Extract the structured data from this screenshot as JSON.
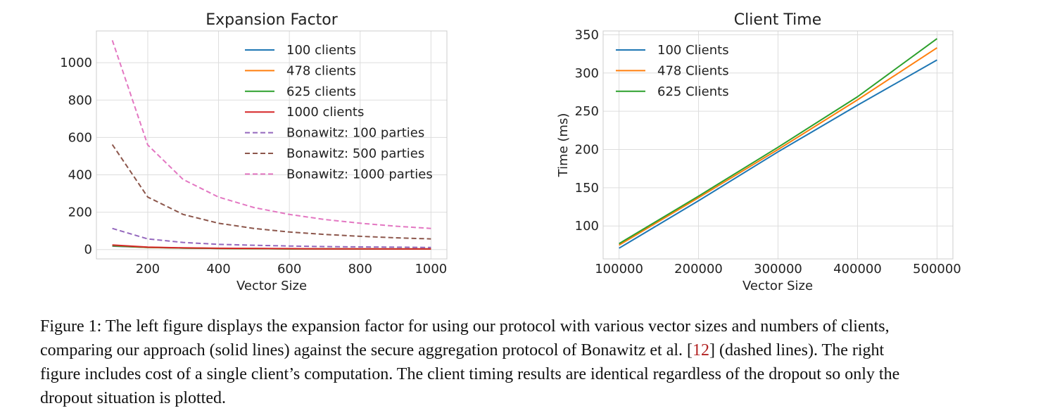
{
  "chart_data": [
    {
      "type": "line",
      "title": "Expansion Factor",
      "xlabel": "Vector Size",
      "ylabel": "",
      "xlim": [
        55,
        1045
      ],
      "ylim": [
        -50,
        1170
      ],
      "xticks": [
        200,
        400,
        600,
        800,
        1000
      ],
      "yticks": [
        0,
        200,
        400,
        600,
        800,
        1000
      ],
      "grid": true,
      "legend_position": "top-right",
      "x": [
        100,
        200,
        300,
        400,
        500,
        600,
        700,
        800,
        900,
        1000
      ],
      "series": [
        {
          "name": "100 clients",
          "color": "#1f77b4",
          "style": "solid",
          "values": [
            18,
            11,
            8,
            6,
            5,
            4,
            4,
            3,
            3,
            3
          ]
        },
        {
          "name": "478 clients",
          "color": "#ff7f0e",
          "style": "solid",
          "values": [
            20,
            11,
            8,
            6,
            5,
            4,
            4,
            3,
            3,
            3
          ]
        },
        {
          "name": "625 clients",
          "color": "#2ca02c",
          "style": "solid",
          "values": [
            21,
            12,
            8,
            6,
            5,
            4,
            4,
            3,
            3,
            3
          ]
        },
        {
          "name": "1000 clients",
          "color": "#d62728",
          "style": "solid",
          "values": [
            24,
            13,
            9,
            7,
            6,
            5,
            4,
            4,
            3,
            3
          ]
        },
        {
          "name": "Bonawitz: 100 parties",
          "color": "#9467bd",
          "style": "dashed",
          "values": [
            113,
            57,
            38,
            28,
            23,
            19,
            16,
            14,
            13,
            11
          ]
        },
        {
          "name": "Bonawitz: 500 parties",
          "color": "#8c564b",
          "style": "dashed",
          "values": [
            562,
            281,
            188,
            141,
            113,
            94,
            81,
            71,
            63,
            57
          ]
        },
        {
          "name": "Bonawitz: 1000 parties",
          "color": "#e377c2",
          "style": "dashed",
          "values": [
            1120,
            560,
            375,
            281,
            225,
            188,
            161,
            141,
            125,
            113
          ]
        }
      ]
    },
    {
      "type": "line",
      "title": "Client Time",
      "xlabel": "Vector Size",
      "ylabel": "Time (ms)",
      "xlim": [
        80000,
        520000
      ],
      "ylim": [
        57,
        355
      ],
      "xticks": [
        100000,
        200000,
        300000,
        400000,
        500000
      ],
      "yticks": [
        100,
        150,
        200,
        250,
        300,
        350
      ],
      "grid": true,
      "legend_position": "top-left",
      "x": [
        100000,
        200000,
        300000,
        400000,
        500000
      ],
      "series": [
        {
          "name": "100 Clients",
          "color": "#1f77b4",
          "style": "solid",
          "values": [
            71,
            133,
            197,
            258,
            317
          ]
        },
        {
          "name": "478 Clients",
          "color": "#ff7f0e",
          "style": "solid",
          "values": [
            75,
            137,
            200,
            265,
            333
          ]
        },
        {
          "name": "625 Clients",
          "color": "#2ca02c",
          "style": "solid",
          "values": [
            77,
            139,
            203,
            269,
            345
          ]
        }
      ]
    }
  ],
  "caption": {
    "line1": "Figure 1: The left figure displays the expansion factor for using our protocol with various vector sizes and numbers of clients,",
    "line2_pre": "comparing our approach (solid lines) against the secure aggregation protocol of Bonawitz et al. [",
    "line2_ref": "12",
    "line2_post": "] (dashed lines). The right",
    "line3": "figure includes cost of a single client’s computation. The client timing results are identical regardless of the dropout so only the",
    "line4": "dropout situation is plotted."
  }
}
